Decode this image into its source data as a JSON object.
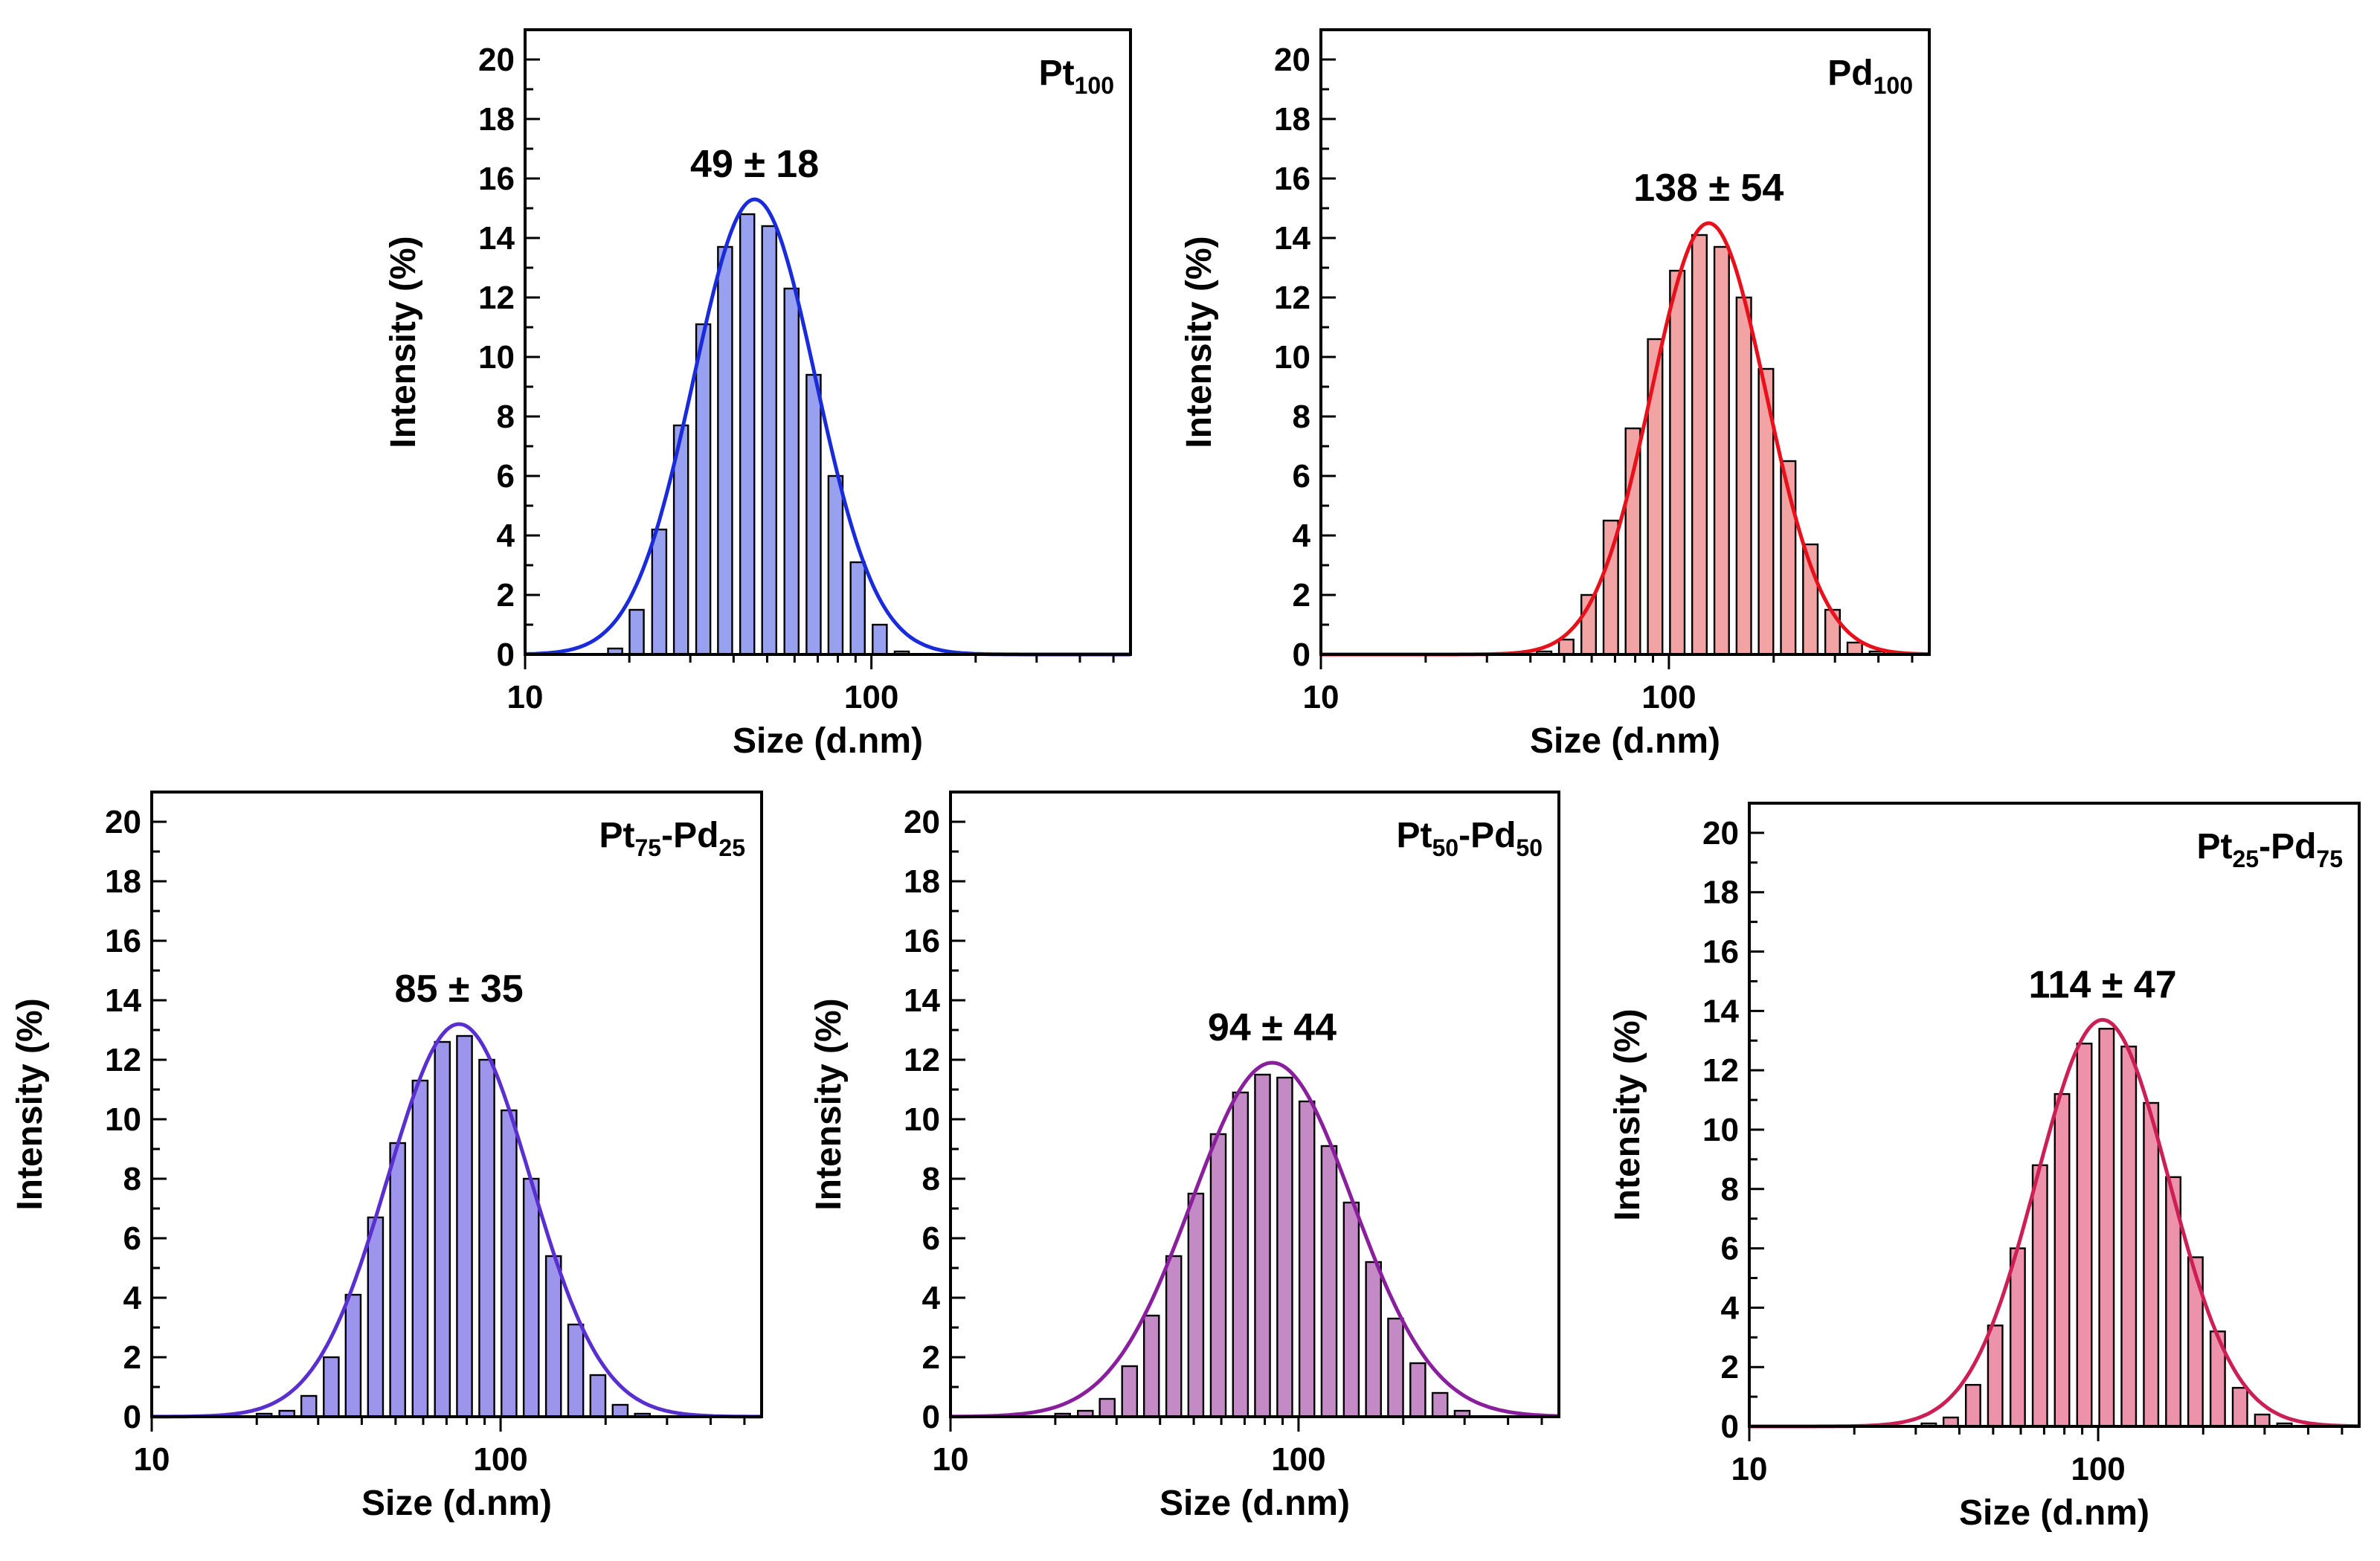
{
  "chart_data": [
    {
      "type": "bar",
      "title": "Pt",
      "title_sub": "100",
      "annotation": "49 ± 18",
      "xlabel": "Size (d.nm)",
      "ylabel": "Intensity (%)",
      "x_scale": "log",
      "xlim": [
        10,
        560
      ],
      "ylim": [
        0,
        21
      ],
      "x_ticks": [
        "10",
        "100"
      ],
      "y_ticks": [
        "0",
        "2",
        "4",
        "6",
        "8",
        "10",
        "12",
        "14",
        "16",
        "18",
        "20"
      ],
      "bar_color": "#98a1ef",
      "fit_color": "#1a2bdb",
      "fit": {
        "peak": 15.3,
        "center": 46,
        "log_sigma": 0.176
      },
      "bars": [
        {
          "x": 18.2,
          "y": 0.2
        },
        {
          "x": 21.0,
          "y": 1.5
        },
        {
          "x": 24.4,
          "y": 4.2
        },
        {
          "x": 28.2,
          "y": 7.7
        },
        {
          "x": 32.7,
          "y": 11.1
        },
        {
          "x": 37.8,
          "y": 13.7
        },
        {
          "x": 43.8,
          "y": 14.8
        },
        {
          "x": 50.7,
          "y": 14.4
        },
        {
          "x": 58.8,
          "y": 12.3
        },
        {
          "x": 68.1,
          "y": 9.4
        },
        {
          "x": 78.8,
          "y": 6.0
        },
        {
          "x": 91.3,
          "y": 3.1
        },
        {
          "x": 105.7,
          "y": 1.0
        },
        {
          "x": 122.4,
          "y": 0.1
        }
      ]
    },
    {
      "type": "bar",
      "title": "Pd",
      "title_sub": "100",
      "annotation": "138 ± 54",
      "xlabel": "Size (d.nm)",
      "ylabel": "Intensity (%)",
      "x_scale": "log",
      "xlim": [
        10,
        560
      ],
      "ylim": [
        0,
        21
      ],
      "x_ticks": [
        "10",
        "100"
      ],
      "y_ticks": [
        "0",
        "2",
        "4",
        "6",
        "8",
        "10",
        "12",
        "14",
        "16",
        "18",
        "20"
      ],
      "bar_color": "#f2a3a3",
      "fit_color": "#e8101b",
      "fit": {
        "peak": 14.5,
        "center": 130,
        "log_sigma": 0.165
      },
      "bars": [
        {
          "x": 43.8,
          "y": 0.1
        },
        {
          "x": 50.7,
          "y": 0.5
        },
        {
          "x": 58.8,
          "y": 2.0
        },
        {
          "x": 68.1,
          "y": 4.5
        },
        {
          "x": 78.8,
          "y": 7.6
        },
        {
          "x": 91.3,
          "y": 10.6
        },
        {
          "x": 105.7,
          "y": 12.9
        },
        {
          "x": 122.4,
          "y": 14.1
        },
        {
          "x": 141.8,
          "y": 13.7
        },
        {
          "x": 164.2,
          "y": 12.0
        },
        {
          "x": 190.1,
          "y": 9.6
        },
        {
          "x": 220.2,
          "y": 6.5
        },
        {
          "x": 255.0,
          "y": 3.7
        },
        {
          "x": 295.3,
          "y": 1.5
        },
        {
          "x": 342.0,
          "y": 0.4
        },
        {
          "x": 396.1,
          "y": 0.1
        }
      ]
    },
    {
      "type": "bar",
      "title": "Pt",
      "title_sub": "75",
      "title2": "-Pd",
      "title2_sub": "25",
      "annotation": "85 ± 35",
      "xlabel": "Size (d.nm)",
      "ylabel": "Intensity (%)",
      "x_scale": "log",
      "xlim": [
        10,
        560
      ],
      "ylim": [
        0,
        21
      ],
      "x_ticks": [
        "10",
        "100"
      ],
      "y_ticks": [
        "0",
        "2",
        "4",
        "6",
        "8",
        "10",
        "12",
        "14",
        "16",
        "18",
        "20"
      ],
      "bar_color": "#9d95ec",
      "fit_color": "#5a2fd0",
      "fit": {
        "peak": 13.2,
        "center": 76,
        "log_sigma": 0.205
      },
      "bars": [
        {
          "x": 21.0,
          "y": 0.1
        },
        {
          "x": 24.4,
          "y": 0.2
        },
        {
          "x": 28.2,
          "y": 0.7
        },
        {
          "x": 32.7,
          "y": 2.0
        },
        {
          "x": 37.8,
          "y": 4.1
        },
        {
          "x": 43.8,
          "y": 6.7
        },
        {
          "x": 50.7,
          "y": 9.2
        },
        {
          "x": 58.8,
          "y": 11.3
        },
        {
          "x": 68.1,
          "y": 12.6
        },
        {
          "x": 78.8,
          "y": 12.8
        },
        {
          "x": 91.3,
          "y": 12.0
        },
        {
          "x": 105.7,
          "y": 10.3
        },
        {
          "x": 122.4,
          "y": 8.0
        },
        {
          "x": 141.8,
          "y": 5.4
        },
        {
          "x": 164.2,
          "y": 3.1
        },
        {
          "x": 190.1,
          "y": 1.4
        },
        {
          "x": 220.2,
          "y": 0.4
        },
        {
          "x": 255.0,
          "y": 0.1
        }
      ]
    },
    {
      "type": "bar",
      "title": "Pt",
      "title_sub": "50",
      "title2": "-Pd",
      "title2_sub": "50",
      "annotation": "94 ± 44",
      "xlabel": "Size (d.nm)",
      "ylabel": "Intensity (%)",
      "x_scale": "log",
      "xlim": [
        10,
        560
      ],
      "ylim": [
        0,
        21
      ],
      "x_ticks": [
        "10",
        "100"
      ],
      "y_ticks": [
        "0",
        "2",
        "4",
        "6",
        "8",
        "10",
        "12",
        "14",
        "16",
        "18",
        "20"
      ],
      "bar_color": "#c48ac6",
      "fit_color": "#8a1f9e",
      "fit": {
        "peak": 11.9,
        "center": 84,
        "log_sigma": 0.232
      },
      "bars": [
        {
          "x": 21.0,
          "y": 0.1
        },
        {
          "x": 24.4,
          "y": 0.2
        },
        {
          "x": 28.2,
          "y": 0.6
        },
        {
          "x": 32.7,
          "y": 1.7
        },
        {
          "x": 37.8,
          "y": 3.4
        },
        {
          "x": 43.8,
          "y": 5.4
        },
        {
          "x": 50.7,
          "y": 7.5
        },
        {
          "x": 58.8,
          "y": 9.5
        },
        {
          "x": 68.1,
          "y": 10.9
        },
        {
          "x": 78.8,
          "y": 11.5
        },
        {
          "x": 91.3,
          "y": 11.4
        },
        {
          "x": 105.7,
          "y": 10.6
        },
        {
          "x": 122.4,
          "y": 9.1
        },
        {
          "x": 141.8,
          "y": 7.2
        },
        {
          "x": 164.2,
          "y": 5.2
        },
        {
          "x": 190.1,
          "y": 3.3
        },
        {
          "x": 220.2,
          "y": 1.8
        },
        {
          "x": 255.0,
          "y": 0.8
        },
        {
          "x": 295.3,
          "y": 0.2
        }
      ]
    },
    {
      "type": "bar",
      "title": "Pt",
      "title_sub": "25",
      "title2": "-Pd",
      "title2_sub": "75",
      "annotation": "114 ± 47",
      "xlabel": "Size (d.nm)",
      "ylabel": "Intensity (%)",
      "x_scale": "log",
      "xlim": [
        10,
        560
      ],
      "ylim": [
        0,
        21
      ],
      "x_ticks": [
        "10",
        "100"
      ],
      "y_ticks": [
        "0",
        "2",
        "4",
        "6",
        "8",
        "10",
        "12",
        "14",
        "16",
        "18",
        "20"
      ],
      "bar_color": "#ec93ab",
      "fit_color": "#cc1f55",
      "fit": {
        "peak": 13.7,
        "center": 103,
        "log_sigma": 0.19
      },
      "bars": [
        {
          "x": 32.7,
          "y": 0.1
        },
        {
          "x": 37.8,
          "y": 0.3
        },
        {
          "x": 43.8,
          "y": 1.4
        },
        {
          "x": 50.7,
          "y": 3.4
        },
        {
          "x": 58.8,
          "y": 6.0
        },
        {
          "x": 68.1,
          "y": 8.8
        },
        {
          "x": 78.8,
          "y": 11.2
        },
        {
          "x": 91.3,
          "y": 12.9
        },
        {
          "x": 105.7,
          "y": 13.4
        },
        {
          "x": 122.4,
          "y": 12.8
        },
        {
          "x": 141.8,
          "y": 10.9
        },
        {
          "x": 164.2,
          "y": 8.4
        },
        {
          "x": 190.1,
          "y": 5.7
        },
        {
          "x": 220.2,
          "y": 3.2
        },
        {
          "x": 255.0,
          "y": 1.3
        },
        {
          "x": 295.3,
          "y": 0.4
        },
        {
          "x": 342.0,
          "y": 0.1
        }
      ]
    }
  ]
}
